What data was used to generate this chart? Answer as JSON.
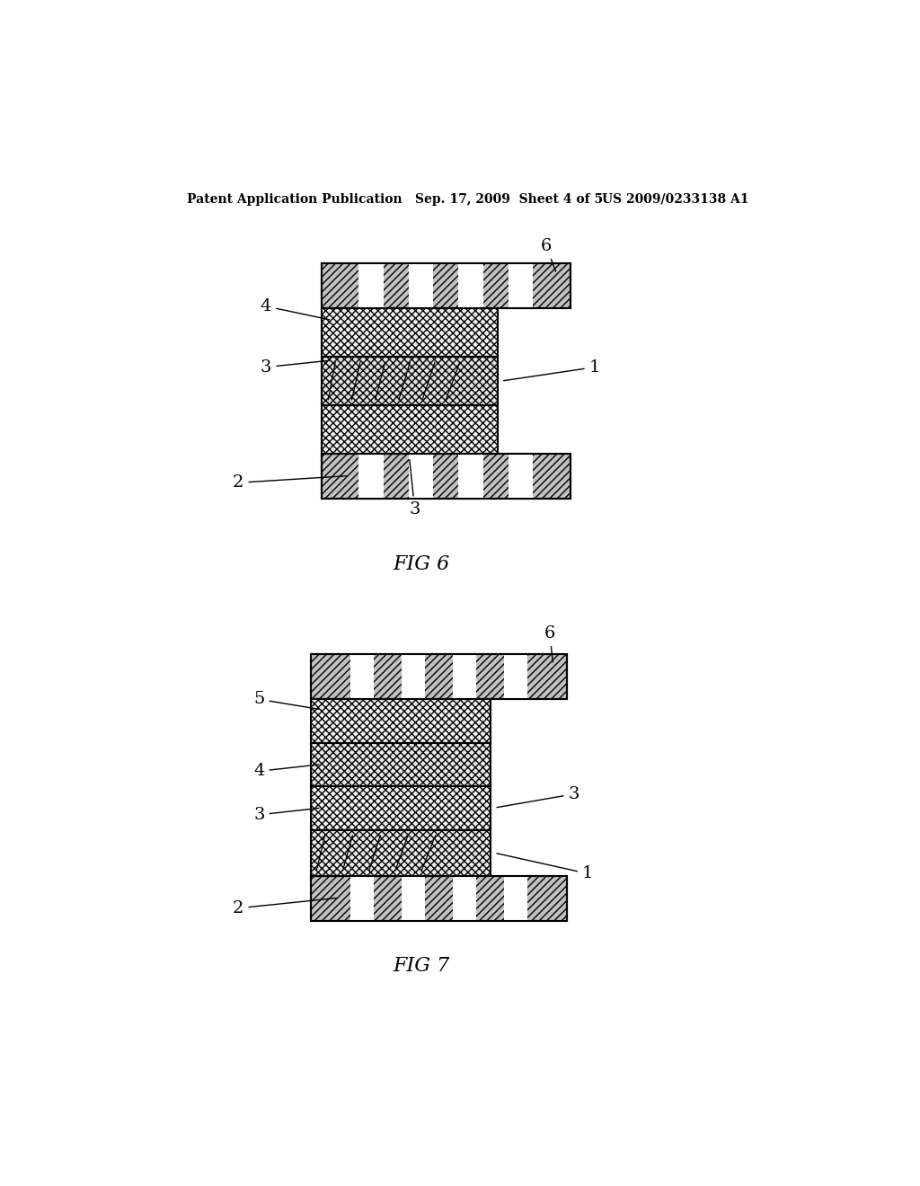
{
  "background_color": "#ffffff",
  "header_text_left": "Patent Application Publication",
  "header_text_mid": "Sep. 17, 2009  Sheet 4 of 5",
  "header_text_right": "US 2009/0233138 A1",
  "fig6_label": "FIG 6",
  "fig7_label": "FIG 7",
  "line_color": "#000000",
  "plate_facecolor": "#b0b0b0",
  "electrode_facecolor": "#e8e8e8",
  "membrane_facecolor": "#d0d0d0"
}
